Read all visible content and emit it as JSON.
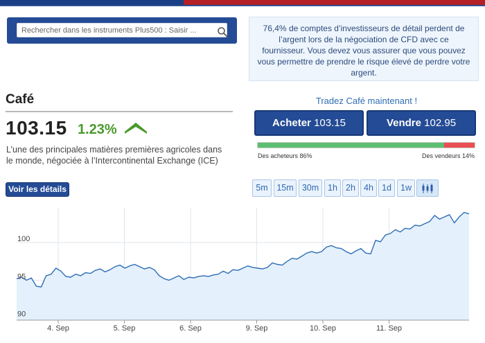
{
  "search": {
    "placeholder": "Rechercher dans les instruments Plus500 : Saisir ..."
  },
  "risk_warning": "76,4% de comptes d’investisseurs de détail perdent de l’argent lors de la négociation de CFD avec ce fournisseur. Vous devez vous assurer que vous pouvez vous permettre de prendre le risque élevé de perdre votre argent.",
  "instrument": {
    "name": "Café",
    "price": "103.15",
    "change": "1.23%",
    "description": "L’une des principales matières premières agricoles dans le monde, négociée à l’Intercontinental Exchange (ICE)",
    "details_label": "Voir les détails"
  },
  "trade": {
    "prompt": "Tradez Café maintenant !",
    "buy_label": "Acheter",
    "buy_price": "103.15",
    "sell_label": "Vendre",
    "sell_price": "102.95",
    "buyers_label": "Des acheteurs 86%",
    "sellers_label": "Des vendeurs 14%",
    "buyers_percent": 86
  },
  "timeframes": [
    "5m",
    "15m",
    "30m",
    "1h",
    "2h",
    "4h",
    "1d",
    "1w"
  ],
  "colors": {
    "brand_blue": "#244b95",
    "up_green": "#4a9a2b",
    "sentiment_green": "#5cbf72",
    "sentiment_red": "#ea5052",
    "chart_line": "#2f6db5",
    "chart_fill": "#e4f0fb"
  },
  "chart_data": {
    "type": "area",
    "x_ticks": [
      "4. Sep",
      "5. Sep",
      "6. Sep",
      "9. Sep",
      "10. Sep",
      "11. Sep"
    ],
    "y_ticks": [
      90,
      95,
      100
    ],
    "ylim": [
      89.7,
      104.6
    ],
    "grid": true,
    "series": [
      {
        "values": [
          95.2,
          95.4,
          95.0,
          95.3,
          94.2,
          94.1,
          95.6,
          95.8,
          96.6,
          96.2,
          95.5,
          95.4,
          95.8,
          95.6,
          96.0,
          95.9,
          96.3,
          96.5,
          96.1,
          96.4,
          96.8,
          97.0,
          96.6,
          96.9,
          97.1,
          96.8,
          96.5,
          96.7,
          96.4,
          95.6,
          95.2,
          95.0,
          95.3,
          95.6,
          95.1,
          95.4,
          95.3,
          95.5,
          95.6,
          95.5,
          95.7,
          95.8,
          96.2,
          95.9,
          96.4,
          96.3,
          96.6,
          96.9,
          96.7,
          96.6,
          96.5,
          96.7,
          97.3,
          97.1,
          97.0,
          97.5,
          97.9,
          97.8,
          98.2,
          98.6,
          98.8,
          98.6,
          98.8,
          99.4,
          99.6,
          99.3,
          99.2,
          98.8,
          98.5,
          98.9,
          99.2,
          98.6,
          98.5,
          100.3,
          100.1,
          101.0,
          101.2,
          101.7,
          101.4,
          101.9,
          101.8,
          102.3,
          102.2,
          102.5,
          102.8,
          103.6,
          103.1,
          103.4,
          103.7,
          102.6,
          103.4,
          104.0,
          103.8
        ]
      }
    ]
  }
}
